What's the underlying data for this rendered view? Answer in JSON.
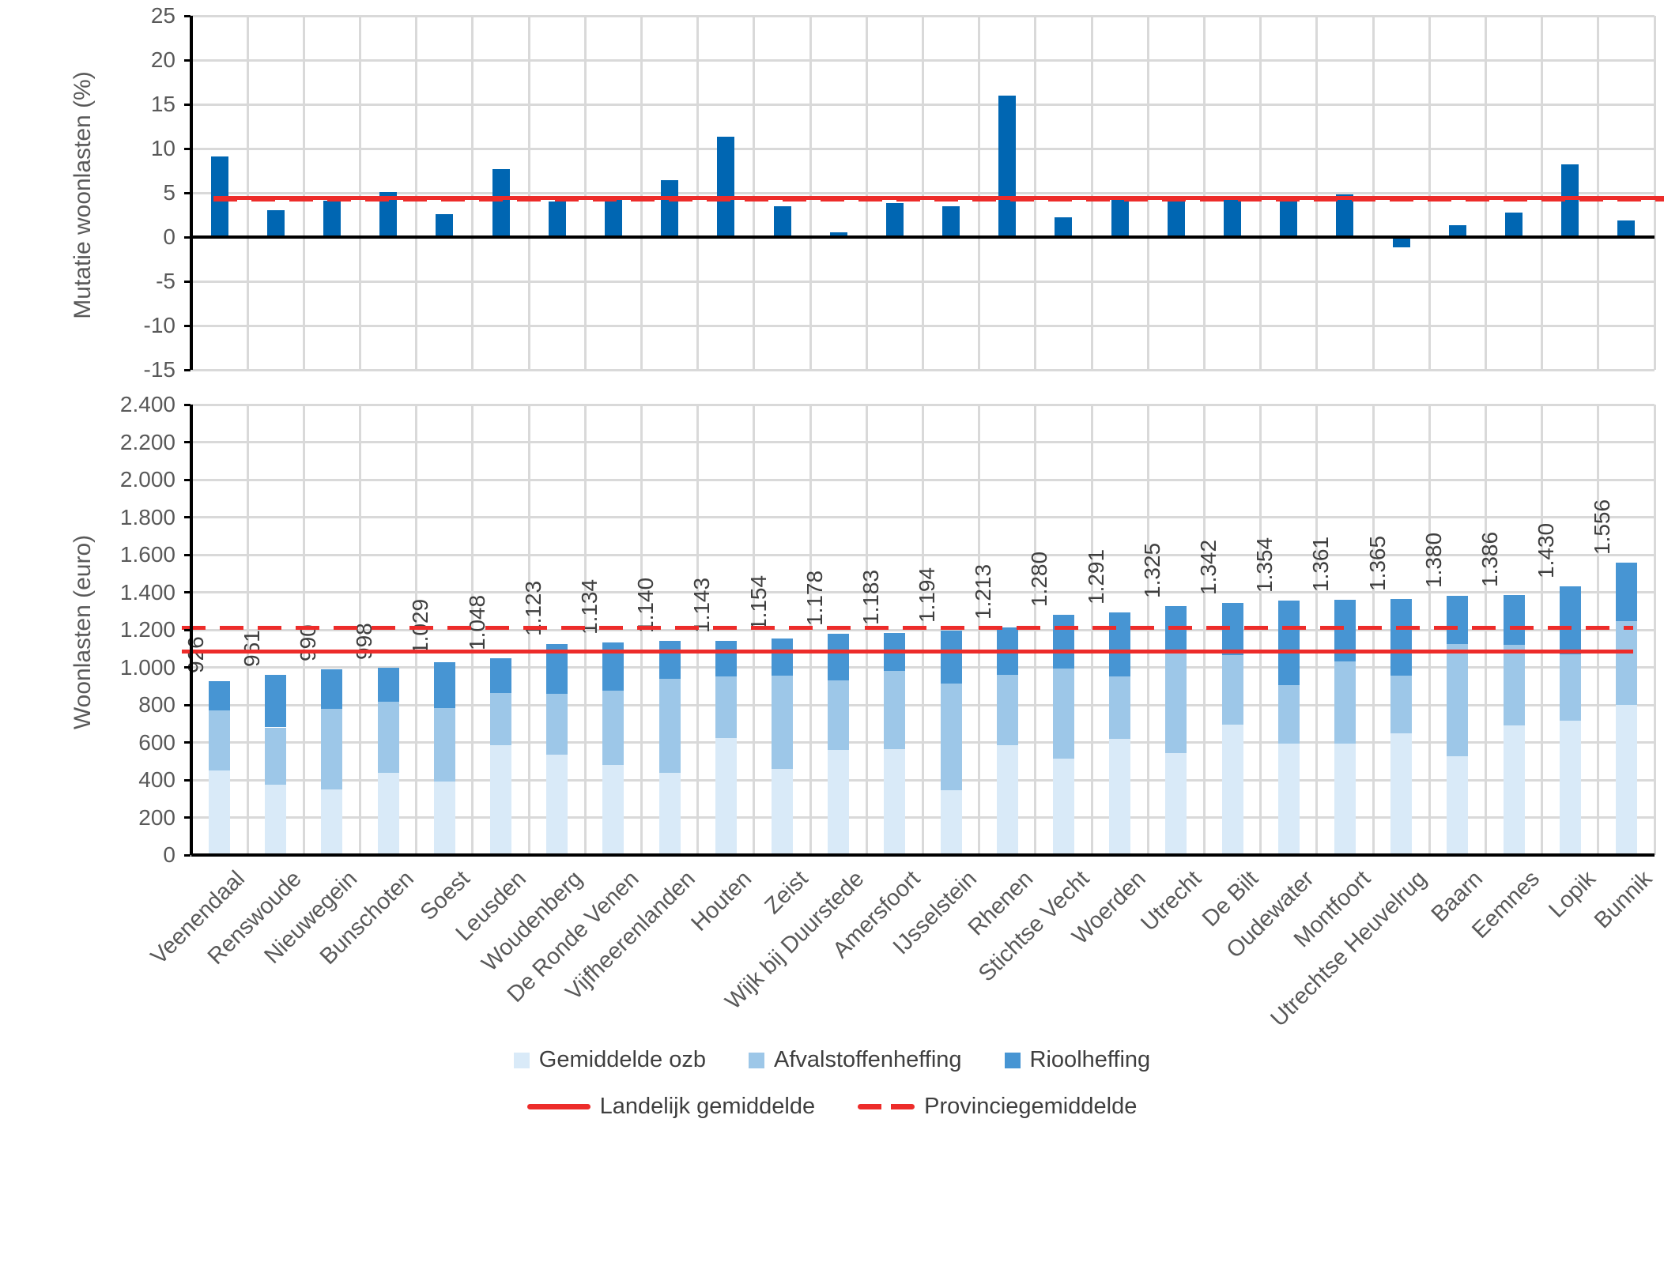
{
  "figure": {
    "municipalities": [
      "Veenendaal",
      "Renswoude",
      "Nieuwegein",
      "Bunschoten",
      "Soest",
      "Leusden",
      "Woudenberg",
      "De Ronde Venen",
      "Vijfheerenlanden",
      "Houten",
      "Zeist",
      "Wijk bij Duurstede",
      "Amersfoort",
      "IJsselstein",
      "Rhenen",
      "Stichtse Vecht",
      "Woerden",
      "Utrecht",
      "De Bilt",
      "Oudewater",
      "Montfoort",
      "Utrechtse Heuvelrug",
      "Baarn",
      "Eemnes",
      "Lopik",
      "Bunnik"
    ],
    "colors": {
      "top_bar": "#0066b2",
      "ozb": "#d9eaf8",
      "afval": "#9dc7e8",
      "riool": "#4795d3",
      "red_line": "#ed2c2a",
      "gridline": "#d9d9d9",
      "axis_text": "#595959",
      "label_text": "#3f3f3f"
    }
  },
  "chart_data": [
    {
      "type": "bar",
      "ylabel": "Mutatie woonlasten  (%)",
      "ylim": [
        -15,
        25
      ],
      "ytick_step": 5,
      "yticks": [
        "25",
        "20",
        "15",
        "10",
        "5",
        "0",
        "-5",
        "-10",
        "-15"
      ],
      "grid": true,
      "categories": [
        "Veenendaal",
        "Renswoude",
        "Nieuwegein",
        "Bunschoten",
        "Soest",
        "Leusden",
        "Woudenberg",
        "De Ronde Venen",
        "Vijfheerenlanden",
        "Houten",
        "Zeist",
        "Wijk bij Duurstede",
        "Amersfoort",
        "IJsselstein",
        "Rhenen",
        "Stichtse Vecht",
        "Woerden",
        "Utrecht",
        "De Bilt",
        "Oudewater",
        "Montfoort",
        "Utrechtse Heuvelrug",
        "Baarn",
        "Eemnes",
        "Lopik",
        "Bunnik"
      ],
      "values": [
        9.1,
        3.0,
        4.1,
        5.1,
        2.6,
        7.7,
        4.0,
        4.6,
        6.4,
        11.3,
        3.5,
        0.5,
        3.8,
        3.5,
        16.0,
        2.2,
        4.6,
        4.1,
        4.2,
        4.2,
        4.8,
        -1.2,
        1.3,
        2.8,
        8.2,
        1.9
      ],
      "bar_color": "#0066b2",
      "ref_lines": [
        {
          "name": "Landelijk gemiddelde",
          "value": 4.4,
          "style": "solid",
          "color": "#ed2c2a"
        },
        {
          "name": "Provinciegemiddelde",
          "value": 4.2,
          "style": "dashed",
          "color": "#ed2c2a"
        }
      ]
    },
    {
      "type": "stacked-bar",
      "ylabel": "Woonlasten  (euro)",
      "ylim": [
        0,
        2400
      ],
      "ytick_step": 200,
      "yticks": [
        "2.400",
        "2.200",
        "2.000",
        "1.800",
        "1.600",
        "1.400",
        "1.200",
        "1.000",
        "800",
        "600",
        "400",
        "200",
        "0"
      ],
      "grid": true,
      "categories": [
        "Veenendaal",
        "Renswoude",
        "Nieuwegein",
        "Bunschoten",
        "Soest",
        "Leusden",
        "Woudenberg",
        "De Ronde Venen",
        "Vijfheerenlanden",
        "Houten",
        "Zeist",
        "Wijk bij Duurstede",
        "Amersfoort",
        "IJsselstein",
        "Rhenen",
        "Stichtse Vecht",
        "Woerden",
        "Utrecht",
        "De Bilt",
        "Oudewater",
        "Montfoort",
        "Utrechtse Heuvelrug",
        "Baarn",
        "Eemnes",
        "Lopik",
        "Bunnik"
      ],
      "series": [
        {
          "name": "Gemiddelde ozb",
          "color": "#d9eaf8",
          "values": [
            450,
            375,
            350,
            440,
            390,
            585,
            535,
            480,
            440,
            625,
            460,
            560,
            565,
            345,
            585,
            515,
            620,
            545,
            695,
            595,
            595,
            650,
            525,
            690,
            715,
            800
          ]
        },
        {
          "name": "Afvalstoffenheffing",
          "color": "#9dc7e8",
          "values": [
            320,
            305,
            430,
            375,
            395,
            280,
            325,
            395,
            500,
            325,
            495,
            370,
            415,
            570,
            375,
            480,
            330,
            530,
            370,
            310,
            435,
            305,
            600,
            430,
            355,
            445
          ]
        },
        {
          "name": "Rioolheffing",
          "color": "#4795d3",
          "values": [
            156,
            281,
            210,
            183,
            244,
            183,
            263,
            259,
            200,
            193,
            199,
            248,
            203,
            279,
            253,
            285,
            341,
            250,
            277,
            449,
            331,
            410,
            255,
            266,
            360,
            311
          ]
        }
      ],
      "totals_labels": [
        "926",
        "961",
        "990",
        "998",
        "1.029",
        "1.048",
        "1.123",
        "1.134",
        "1.140",
        "1.143",
        "1.154",
        "1.178",
        "1.183",
        "1.194",
        "1.213",
        "1.280",
        "1.291",
        "1.325",
        "1.342",
        "1.354",
        "1.361",
        "1.365",
        "1.380",
        "1.386",
        "1.430",
        "1.556"
      ],
      "ref_lines": [
        {
          "name": "Landelijk gemiddelde",
          "value": 1085,
          "style": "solid",
          "color": "#ed2c2a"
        },
        {
          "name": "Provinciegemiddelde",
          "value": 1210,
          "style": "dashed",
          "color": "#ed2c2a"
        }
      ]
    }
  ],
  "legend": {
    "rows": [
      {
        "items": [
          {
            "swatch": "square",
            "color": "#d9eaf8",
            "label": "Gemiddelde ozb"
          },
          {
            "swatch": "square",
            "color": "#9dc7e8",
            "label": "Afvalstoffenheffing"
          },
          {
            "swatch": "square",
            "color": "#4795d3",
            "label": "Rioolheffing"
          }
        ]
      },
      {
        "items": [
          {
            "swatch": "line",
            "color": "#ed2c2a",
            "label": "Landelijk gemiddelde"
          },
          {
            "swatch": "dash",
            "color": "#ed2c2a",
            "label": "Provinciegemiddelde"
          }
        ]
      }
    ]
  }
}
